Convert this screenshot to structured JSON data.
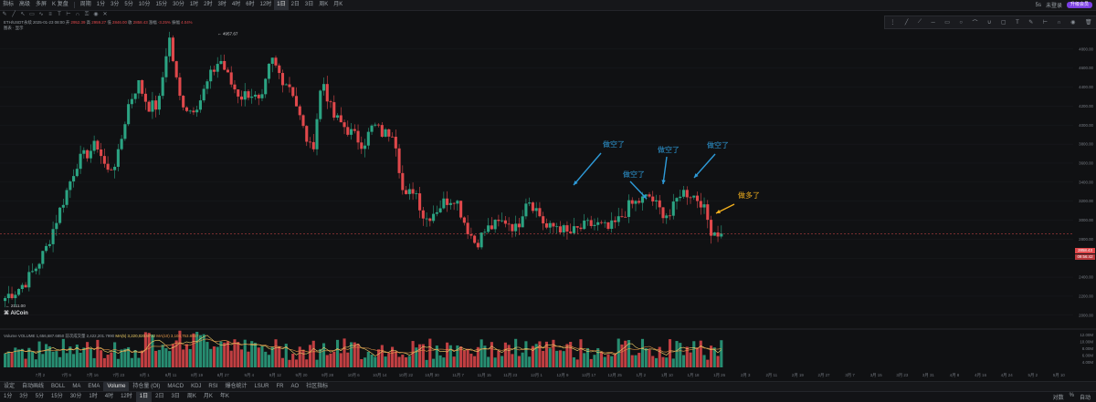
{
  "toolbar": {
    "items": [
      "指标",
      "高级",
      "多屏",
      "K 复盘",
      "周期",
      "1分",
      "3分",
      "5分",
      "10分",
      "15分",
      "30分",
      "1时",
      "2时",
      "3时",
      "4时",
      "6时",
      "12时",
      "1日",
      "2日",
      "3日",
      "周K",
      "月K"
    ],
    "active": "1日",
    "right_num": "5s",
    "account": "未登录",
    "upgrade": "升级会员"
  },
  "info": {
    "symbol": "ETH/USDT永续",
    "time": "2025-01-23 08:00",
    "o_label": "开",
    "o_val": "2952.39",
    "h_label": "高",
    "h_val": "2959.27",
    "l_label": "低",
    "l_val": "2846.00",
    "c_label": "收",
    "c_val": "2858.43",
    "chg_label": "涨幅",
    "chg_val": "-3.25%",
    "amp_label": "振幅",
    "amp_val": "4.04%",
    "sub": "图表 · 显示"
  },
  "volume_info": {
    "label": "Volume",
    "vol": "VOLUME 1,656,687.6850",
    "prev": "前次成交量 2,422,201.7990",
    "ma5": "MA(5) 3,220,020.9732",
    "ma10": "MA(10) 3,104,753.8667"
  },
  "logo": "AiCoin",
  "annotations": {
    "short1": "做空了",
    "short2": "做空了",
    "short3": "做空了",
    "short4": "做空了",
    "long": "做多了"
  },
  "colors": {
    "up": "#2ba382",
    "down": "#e0484b",
    "short_arrow": "#2e9bd9",
    "long_arrow": "#f2b01e"
  },
  "price_tags": {
    "current": "2858.43",
    "countdown": "09:56:42"
  },
  "tabs": [
    "设定",
    "自动画线",
    "BOLL",
    "MA",
    "EMA",
    "Volume",
    "持仓量 (OI)",
    "MACD",
    "KDJ",
    "RSI",
    "爆仓统计",
    "LSUR",
    "FR",
    "AO",
    "社区指标"
  ],
  "tabs_active": "Volume",
  "bottom": {
    "items": [
      "1分",
      "3分",
      "5分",
      "15分",
      "30分",
      "1时",
      "4时",
      "12时",
      "1日",
      "2日",
      "3日",
      "周K",
      "月K",
      "年K"
    ],
    "active": "1日",
    "right": [
      "对数",
      "%",
      "自动"
    ]
  },
  "chart_data": {
    "type": "candlestick",
    "price_axis": [
      "4800.00",
      "4600.00",
      "4400.00",
      "4200.00",
      "4000.00",
      "3800.00",
      "3600.00",
      "3400.00",
      "3200.00",
      "3000.00",
      "2800.00",
      "2600.00",
      "2400.00",
      "2200.00",
      "2000.00"
    ],
    "volume_axis": [
      "12.00M",
      "10.00M",
      "8.00M",
      "6.00M",
      "4.00M"
    ],
    "date_axis": [
      "7月 2",
      "7月 9",
      "7月 16",
      "7月 23",
      "8月 1",
      "8月 11",
      "8月 19",
      "8月 27",
      "9月 4",
      "9月 12",
      "9月 20",
      "9月 28",
      "10月 6",
      "10月 14",
      "10月 22",
      "10月 30",
      "11月 7",
      "11月 15",
      "11月 23",
      "12月 1",
      "12月 9",
      "12月 17",
      "12月 25",
      "1月 2",
      "1月 10",
      "1月 18",
      "1月 26",
      "2月 3",
      "2月 11",
      "2月 19",
      "2月 27",
      "3月 7",
      "3月 15",
      "3月 23",
      "3月 31",
      "4月 8",
      "4月 16",
      "4月 24",
      "5月 2",
      "5月 10"
    ],
    "high_label": "4957.67",
    "low_label": "2111.00",
    "ylim": [
      1950,
      5000
    ],
    "anchors_close": [
      2200,
      2250,
      2350,
      2500,
      2700,
      3000,
      3300,
      3600,
      3700,
      3800,
      3500,
      3650,
      4200,
      4450,
      4200,
      4200,
      4957,
      4300,
      4150,
      4250,
      4500,
      4700,
      4450,
      4300,
      4350,
      4200,
      4700,
      4500,
      4400,
      4000,
      3700,
      4500,
      4100,
      4000,
      3900,
      3800,
      4000,
      3900,
      3950,
      3200,
      3350,
      3000,
      3100,
      3200,
      3250,
      2950,
      2750,
      2900,
      2950,
      3000,
      2900,
      3250,
      3100,
      2900,
      2950,
      2850,
      2900,
      2950,
      2950,
      2900,
      3000,
      3150,
      3200,
      3250,
      3100,
      3050,
      3300,
      3280,
      3200,
      2900,
      2858
    ],
    "last_close": 2858.43
  }
}
